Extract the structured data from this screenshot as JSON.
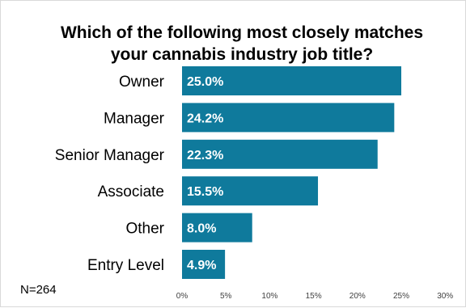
{
  "chart_data": {
    "type": "bar",
    "orientation": "horizontal",
    "title_lines": [
      "Which of the following most closely matches",
      "your cannabis industry job title?"
    ],
    "categories": [
      "Owner",
      "Manager",
      "Senior Manager",
      "Associate",
      "Other",
      "Entry Level"
    ],
    "values": [
      25.0,
      24.2,
      22.3,
      15.5,
      8.0,
      4.9
    ],
    "data_labels": [
      "25.0%",
      "24.2%",
      "22.3%",
      "15.5%",
      "8.0%",
      "4.9%"
    ],
    "xlim": [
      0,
      30
    ],
    "xticks": [
      0,
      5,
      10,
      15,
      20,
      25,
      30
    ],
    "xtick_labels": [
      "0%",
      "5%",
      "10%",
      "15%",
      "20%",
      "25%",
      "30%"
    ],
    "grid": false,
    "bar_color": "#0f7a9c",
    "note": "N=264"
  }
}
